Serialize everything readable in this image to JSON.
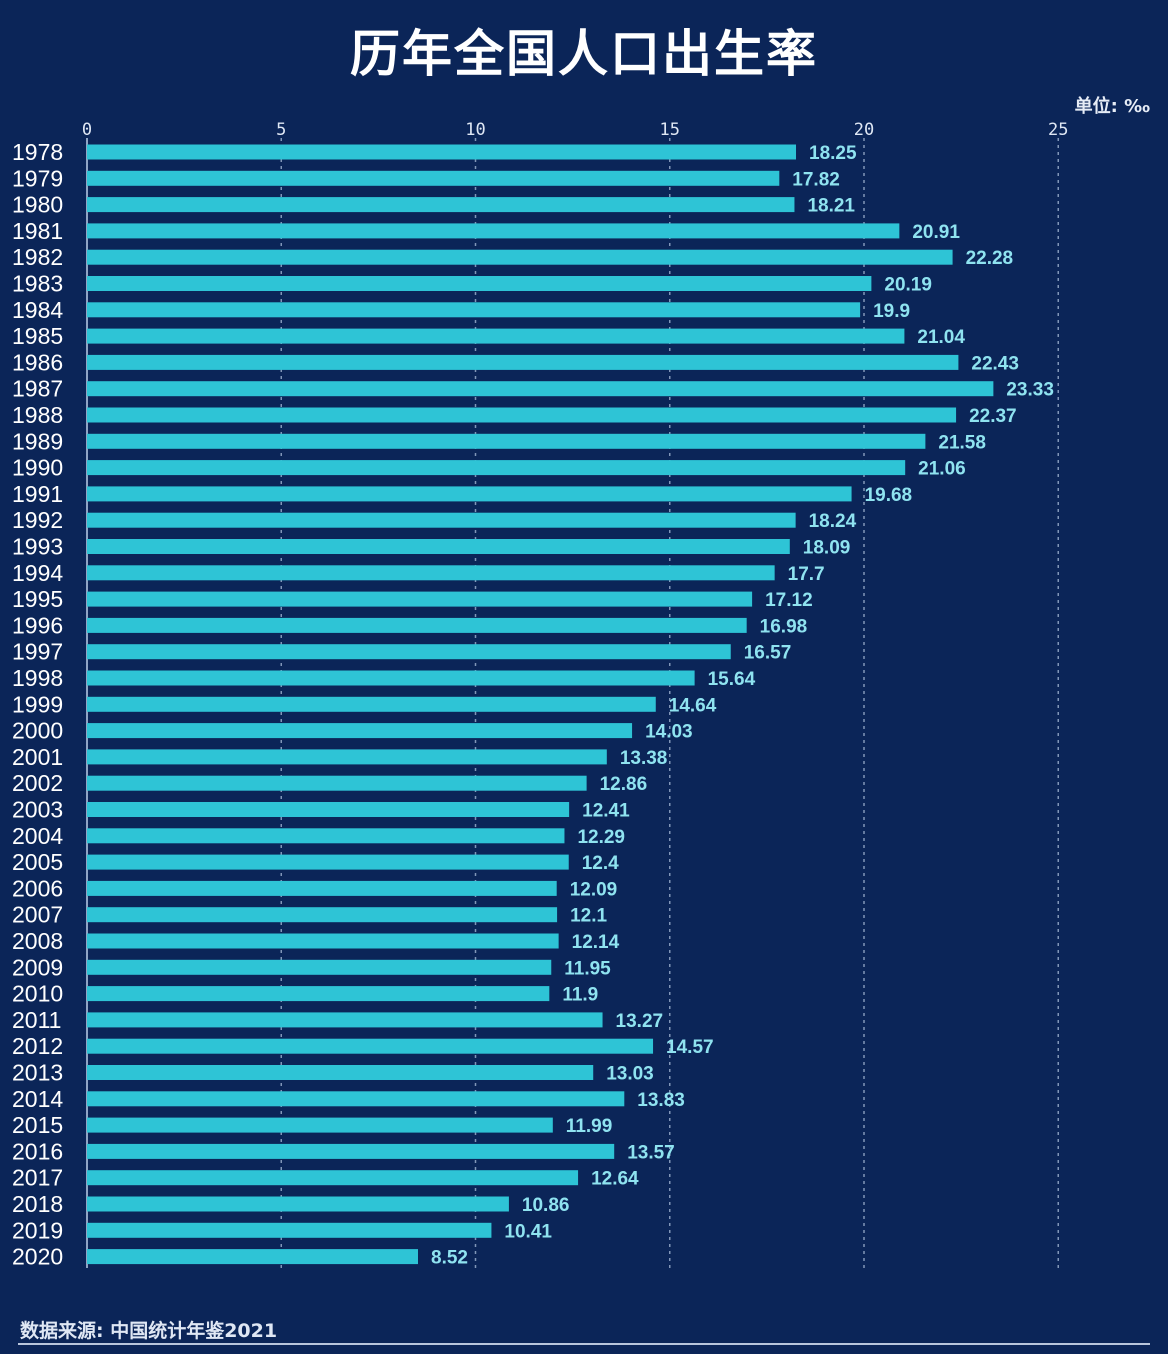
{
  "title": "历年全国人口出生率",
  "unit_label": "单位: ‰",
  "source": "数据来源: 中国统计年鉴2021",
  "colors": {
    "background": "#0b2558",
    "bar": "#2ec4d6",
    "value_label": "#8fe3f0",
    "grid": "#9fb3d1"
  },
  "chart_data": {
    "type": "bar",
    "orientation": "horizontal",
    "xlim": [
      0,
      25
    ],
    "x_ticks": [
      0,
      5,
      10,
      15,
      20,
      25
    ],
    "grid": true,
    "categories": [
      "1978",
      "1979",
      "1980",
      "1981",
      "1982",
      "1983",
      "1984",
      "1985",
      "1986",
      "1987",
      "1988",
      "1989",
      "1990",
      "1991",
      "1992",
      "1993",
      "1994",
      "1995",
      "1996",
      "1997",
      "1998",
      "1999",
      "2000",
      "2001",
      "2002",
      "2003",
      "2004",
      "2005",
      "2006",
      "2007",
      "2008",
      "2009",
      "2010",
      "2011",
      "2012",
      "2013",
      "2014",
      "2015",
      "2016",
      "2017",
      "2018",
      "2019",
      "2020"
    ],
    "values": [
      18.25,
      17.82,
      18.21,
      20.91,
      22.28,
      20.19,
      19.9,
      21.04,
      22.43,
      23.33,
      22.37,
      21.58,
      21.06,
      19.68,
      18.24,
      18.09,
      17.7,
      17.12,
      16.98,
      16.57,
      15.64,
      14.64,
      14.03,
      13.38,
      12.86,
      12.41,
      12.29,
      12.4,
      12.09,
      12.1,
      12.14,
      11.95,
      11.9,
      13.27,
      14.57,
      13.03,
      13.83,
      11.99,
      13.57,
      12.64,
      10.86,
      10.41,
      8.52
    ],
    "value_labels": [
      "18.25",
      "17.82",
      "18.21",
      "20.91",
      "22.28",
      "20.19",
      "19.9",
      "21.04",
      "22.43",
      "23.33",
      "22.37",
      "21.58",
      "21.06",
      "19.68",
      "18.24",
      "18.09",
      "17.7",
      "17.12",
      "16.98",
      "16.57",
      "15.64",
      "14.64",
      "14.03",
      "13.38",
      "12.86",
      "12.41",
      "12.29",
      "12.4",
      "12.09",
      "12.1",
      "12.14",
      "11.95",
      "11.9",
      "13.27",
      "14.57",
      "13.03",
      "13.83",
      "11.99",
      "13.57",
      "12.64",
      "10.86",
      "10.41",
      "8.52"
    ]
  }
}
